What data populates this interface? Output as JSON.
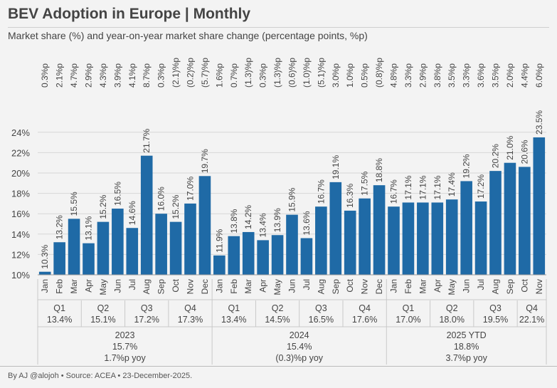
{
  "title": "BEV Adoption in Europe | Monthly",
  "subtitle": "Market share (%) and year-on-year market share change (percentage points, %p)",
  "footer": "By AJ @alojoh • Source: ACEA • 23-December-2025.",
  "colors": {
    "bar": "#1f6aa6",
    "grid": "#d6d6d6",
    "text": "#444444",
    "bg": "#f3f3f3"
  },
  "chart_data": {
    "type": "bar",
    "ylabel": "Market share (%)",
    "ylim": [
      10,
      24
    ],
    "yticks": [
      "10%",
      "12%",
      "14%",
      "16%",
      "18%",
      "20%",
      "22%",
      "24%"
    ],
    "categories": [
      "Jan",
      "Feb",
      "Mar",
      "Apr",
      "May",
      "Jun",
      "Jul",
      "Aug",
      "Sep",
      "Oct",
      "Nov",
      "Dec",
      "Jan",
      "Feb",
      "Mar",
      "Apr",
      "May",
      "Jun",
      "Jul",
      "Aug",
      "Sep",
      "Oct",
      "Nov",
      "Dec",
      "Jan",
      "Feb",
      "Mar",
      "Apr",
      "May",
      "Jun",
      "Jul",
      "Aug",
      "Sep",
      "Oct",
      "Nov"
    ],
    "values": [
      10.3,
      13.2,
      15.5,
      13.1,
      15.2,
      16.5,
      14.6,
      21.7,
      16.0,
      15.2,
      17.0,
      19.7,
      11.9,
      13.8,
      14.2,
      13.4,
      13.9,
      15.9,
      13.6,
      16.7,
      19.1,
      16.3,
      17.5,
      18.8,
      16.7,
      17.1,
      17.1,
      17.1,
      17.4,
      19.2,
      17.2,
      20.2,
      21.0,
      20.6,
      23.5
    ],
    "value_labels": [
      "10.3%",
      "13.2%",
      "15.5%",
      "13.1%",
      "15.2%",
      "16.5%",
      "14.6%",
      "21.7%",
      "16.0%",
      "15.2%",
      "17.0%",
      "19.7%",
      "11.9%",
      "13.8%",
      "14.2%",
      "13.4%",
      "13.9%",
      "15.9%",
      "13.6%",
      "16.7%",
      "19.1%",
      "16.3%",
      "17.5%",
      "18.8%",
      "16.7%",
      "17.1%",
      "17.1%",
      "17.1%",
      "17.4%",
      "19.2%",
      "17.2%",
      "20.2%",
      "21.0%",
      "20.6%",
      "23.5%"
    ],
    "yoy_labels": [
      "0.3%p",
      "2.1%p",
      "4.7%p",
      "2.9%p",
      "4.3%p",
      "3.9%p",
      "4.1%p",
      "8.7%p",
      "0.3%p",
      "(2.1)%p",
      "(0.2)%p",
      "(5.7)%p",
      "1.6%p",
      "0.7%p",
      "(1.3)%p",
      "0.3%p",
      "(1.3)%p",
      "(0.6)%p",
      "(1.0)%p",
      "(5.1)%p",
      "3.0%p",
      "1.0%p",
      "0.5%p",
      "(0.8)%p",
      "4.8%p",
      "3.3%p",
      "2.9%p",
      "3.8%p",
      "3.5%p",
      "3.3%p",
      "3.6%p",
      "3.5%p",
      "2.0%p",
      "4.4%p",
      "6.0%p"
    ],
    "quarters": [
      {
        "label": "Q1",
        "value": "13.4%"
      },
      {
        "label": "Q2",
        "value": "15.1%"
      },
      {
        "label": "Q3",
        "value": "17.2%"
      },
      {
        "label": "Q4",
        "value": "17.3%"
      },
      {
        "label": "Q1",
        "value": "13.4%"
      },
      {
        "label": "Q2",
        "value": "14.5%"
      },
      {
        "label": "Q3",
        "value": "16.5%"
      },
      {
        "label": "Q4",
        "value": "17.6%"
      },
      {
        "label": "Q1",
        "value": "17.0%"
      },
      {
        "label": "Q2",
        "value": "18.0%"
      },
      {
        "label": "Q3",
        "value": "19.5%"
      },
      {
        "label": "Q4",
        "value": "22.1%"
      }
    ],
    "years": [
      {
        "label": "2023",
        "share": "15.7%",
        "yoy": "1.7%p yoy"
      },
      {
        "label": "2024",
        "share": "15.4%",
        "yoy": "(0.3)%p yoy"
      },
      {
        "label": "2025 YTD",
        "share": "18.8%",
        "yoy": "3.7%p yoy"
      }
    ]
  }
}
